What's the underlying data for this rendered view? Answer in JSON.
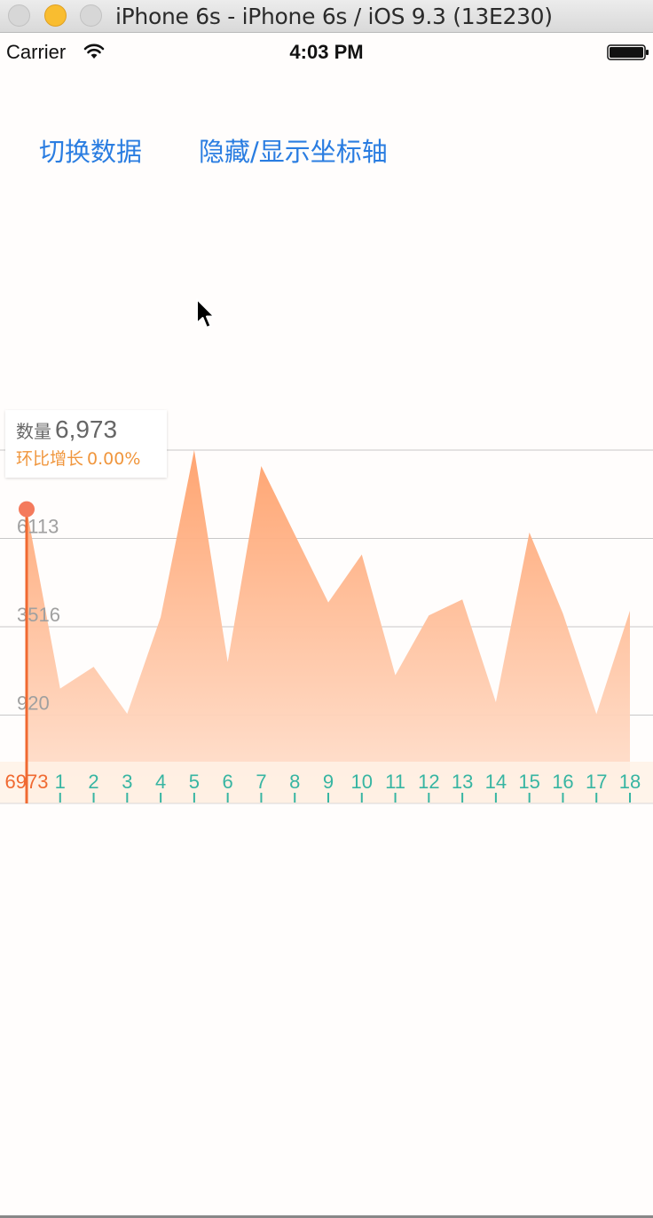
{
  "window": {
    "title": "iPhone 6s - iPhone 6s / iOS 9.3 (13E230)"
  },
  "status_bar": {
    "carrier": "Carrier",
    "time": "4:03 PM"
  },
  "buttons": {
    "switch_data": "切换数据",
    "toggle_axis": "隐藏/显示坐标轴"
  },
  "tooltip": {
    "quantity_label": "数量",
    "quantity_value": "6,973",
    "growth_label": "环比增长",
    "growth_value": "0.00%"
  },
  "colors": {
    "accent_blue": "#2a7de1",
    "area_top": "#ffa06a",
    "area_bottom": "#ffe3d3",
    "indicator": "#f06a32",
    "tooltip_growth": "#f0963d",
    "x_tick": "#37b5a2",
    "grid": "#c8c8c8",
    "y_label": "#a0a0a0"
  },
  "chart_data": {
    "type": "area",
    "x": [
      0,
      1,
      2,
      3,
      4,
      5,
      6,
      7,
      8,
      9,
      10,
      11,
      12,
      13,
      14,
      15,
      16,
      17,
      18
    ],
    "x_tick_labels": [
      "1",
      "2",
      "3",
      "4",
      "5",
      "6",
      "7",
      "8",
      "9",
      "10",
      "11",
      "12",
      "13",
      "14",
      "15",
      "16",
      "17",
      "18"
    ],
    "y_tick_labels": [
      "6113",
      "3516",
      "920"
    ],
    "y_ticks": [
      6113,
      3516,
      920
    ],
    "values": [
      6973,
      1700,
      2340,
      960,
      3800,
      8710,
      2480,
      8240,
      6230,
      4230,
      5640,
      2090,
      3850,
      4320,
      1300,
      6290,
      3910,
      950,
      3990
    ],
    "ylim": [
      -1676,
      8710
    ],
    "selected_index": 0,
    "selected_label": "6973",
    "grid": true
  }
}
